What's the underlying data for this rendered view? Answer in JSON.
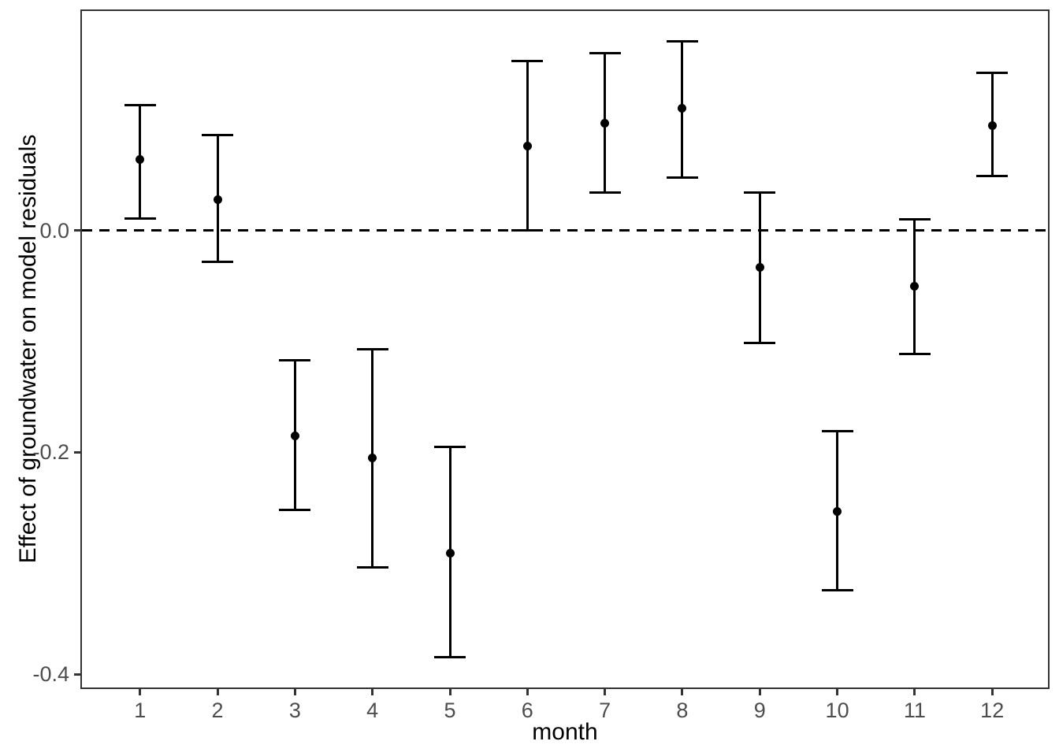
{
  "figure": {
    "background": "#FFFFFF"
  },
  "colors": {
    "data": "#000000",
    "axis_text": "#4D4D4D",
    "axis_title": "#000000",
    "panel_border": "#333333",
    "reference_line": "#000000"
  },
  "chart_data": {
    "type": "pointrange",
    "title": "",
    "xlabel": "month",
    "ylabel": "Effect of groundwater on model residuals",
    "x": [
      1,
      2,
      3,
      4,
      5,
      6,
      7,
      8,
      9,
      10,
      11,
      12
    ],
    "x_tick_labels": [
      "1",
      "2",
      "3",
      "4",
      "5",
      "6",
      "7",
      "8",
      "9",
      "10",
      "11",
      "12"
    ],
    "series": [
      {
        "name": "effect of groundwater on model residuals",
        "estimates": [
          0.064,
          0.028,
          -0.185,
          -0.205,
          -0.291,
          0.076,
          0.097,
          0.11,
          -0.033,
          -0.253,
          -0.05,
          0.095
        ],
        "lower": [
          0.011,
          -0.028,
          -0.252,
          -0.304,
          -0.385,
          0.0,
          0.034,
          0.048,
          -0.101,
          -0.324,
          -0.111,
          0.049
        ],
        "upper": [
          0.113,
          0.086,
          -0.117,
          -0.107,
          -0.195,
          0.153,
          0.16,
          0.171,
          0.034,
          -0.181,
          0.01,
          0.142
        ]
      }
    ],
    "y_ticks": [
      {
        "value": 0.0,
        "label": "0.0"
      },
      {
        "value": -0.2,
        "label": "-0.2"
      },
      {
        "value": -0.4,
        "label": "-0.4"
      }
    ],
    "reference_line": {
      "value": 0,
      "style": "dashed"
    },
    "xlim": [
      0.25,
      12.72
    ],
    "ylim": [
      -0.412,
      0.198
    ],
    "grid": false,
    "legend": "none"
  }
}
